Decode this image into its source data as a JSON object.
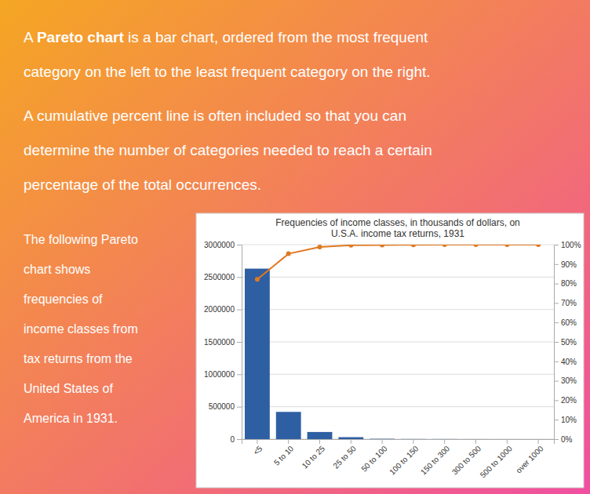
{
  "chart_data": {
    "type": "bar",
    "title": [
      "Frequencies of income classes, in thousands of dollars, on",
      "U.S.A. income tax returns, 1931"
    ],
    "annotations": [
      [
        [
          "A ",
          "Pareto chart",
          " is a bar chart, ordered from the most frequent"
        ],
        [
          "category on the left to the least frequent category on the right."
        ]
      ],
      [
        [
          "A cumulative percent line is often included so that you can"
        ],
        [
          "determine the number of categories needed to reach a certain"
        ],
        [
          "percentage of the total occurrences."
        ]
      ],
      [
        [
          "The following Pareto"
        ],
        [
          "chart shows"
        ],
        [
          "frequencies of"
        ],
        [
          "income classes from"
        ],
        [
          "tax returns from the"
        ],
        [
          "United States of"
        ],
        [
          "America in 1931."
        ]
      ]
    ],
    "categories": [
      "<5",
      "5 to 10",
      "10 to 25",
      "25 to 50",
      "50 to 100",
      "100 to 150",
      "150 to 300",
      "300 to 500",
      "500 to 1000",
      "over 1000"
    ],
    "series": [
      {
        "type": "bar",
        "axis": "y",
        "color": "#2e5fa3",
        "values": [
          2630000,
          420000,
          110000,
          30000,
          5000,
          2000,
          1500,
          800,
          400,
          200
        ]
      },
      {
        "type": "line",
        "axis": "y2",
        "color": "#e07820",
        "marker": "circle",
        "values": [
          82.190068,
          95.315479,
          98.753086,
          99.690615,
          99.84687,
          99.909372,
          99.956249,
          99.981249,
          99.99375,
          100
        ]
      }
    ],
    "ylim": [
      0,
      3000000
    ],
    "yticks": [
      0,
      500000,
      1000000,
      1500000,
      2000000,
      2500000,
      3000000
    ],
    "y2lim": [
      0,
      100
    ],
    "y2ticks": [
      {
        "value": 0,
        "label": "0%"
      },
      {
        "value": 10,
        "label": "10%"
      },
      {
        "value": 20,
        "label": "20%"
      },
      {
        "value": 30,
        "label": "30%"
      },
      {
        "value": 40,
        "label": "40%"
      },
      {
        "value": 50,
        "label": "50%"
      },
      {
        "value": 60,
        "label": "60%"
      },
      {
        "value": 70,
        "label": "70%"
      },
      {
        "value": 80,
        "label": "80%"
      },
      {
        "value": 90,
        "label": "90%"
      },
      {
        "value": 100,
        "label": "100%"
      }
    ],
    "grid": true
  }
}
